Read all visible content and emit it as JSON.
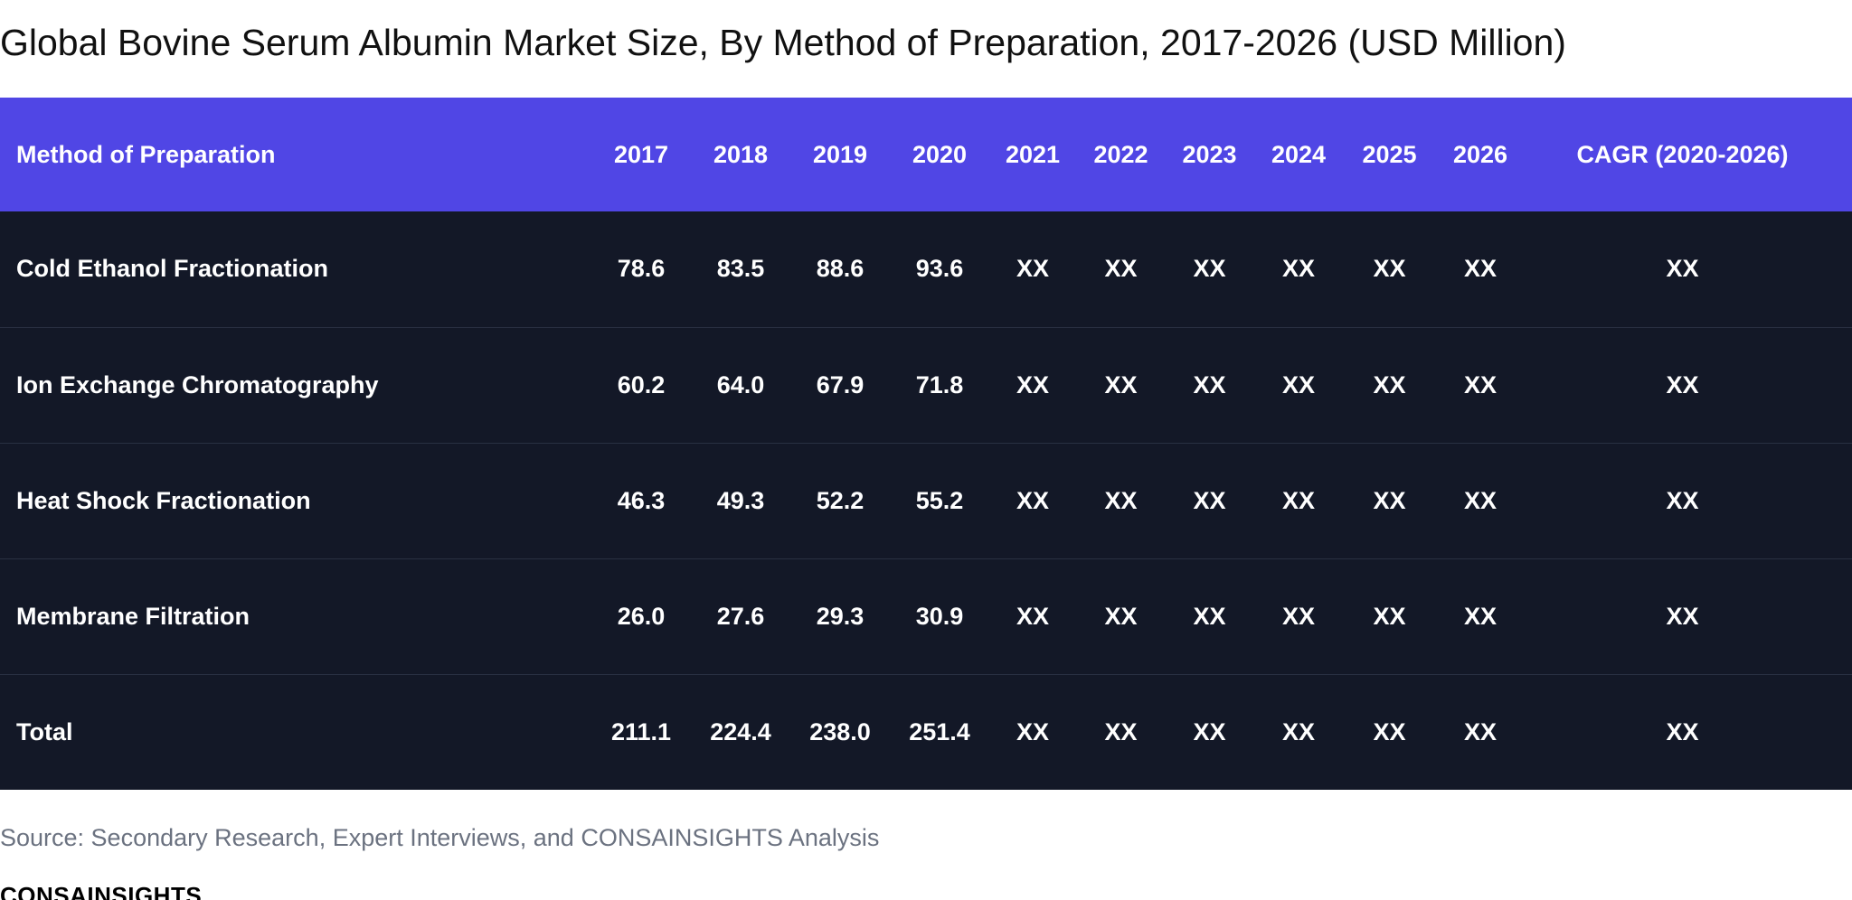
{
  "chart_data": {
    "type": "table",
    "title": "Global Bovine Serum Albumin Market Size, By Method of Preparation, 2017-2026 (USD Million)",
    "columns": [
      "Method of Preparation",
      "2017",
      "2018",
      "2019",
      "2020",
      "2021",
      "2022",
      "2023",
      "2024",
      "2025",
      "2026",
      "CAGR (2020-2026)"
    ],
    "rows": [
      [
        "Cold Ethanol Fractionation",
        "78.6",
        "83.5",
        "88.6",
        "93.6",
        "XX",
        "XX",
        "XX",
        "XX",
        "XX",
        "XX",
        "XX"
      ],
      [
        "Ion Exchange Chromatography",
        "60.2",
        "64.0",
        "67.9",
        "71.8",
        "XX",
        "XX",
        "XX",
        "XX",
        "XX",
        "XX",
        "XX"
      ],
      [
        "Heat Shock Fractionation",
        "46.3",
        "49.3",
        "52.2",
        "55.2",
        "XX",
        "XX",
        "XX",
        "XX",
        "XX",
        "XX",
        "XX"
      ],
      [
        "Membrane Filtration",
        "26.0",
        "27.6",
        "29.3",
        "30.9",
        "XX",
        "XX",
        "XX",
        "XX",
        "XX",
        "XX",
        "XX"
      ],
      [
        "Total",
        "211.1",
        "224.4",
        "238.0",
        "251.4",
        "XX",
        "XX",
        "XX",
        "XX",
        "XX",
        "XX",
        "XX"
      ]
    ]
  },
  "source": "Source: Secondary Research, Expert Interviews, and CONSAINSIGHTS Analysis",
  "brand": "CONSAINSIGHTS",
  "colors": {
    "header_bg": "#5046e5",
    "body_bg": "#131827",
    "row_divider": "#293042",
    "source_text": "#6b7280"
  }
}
